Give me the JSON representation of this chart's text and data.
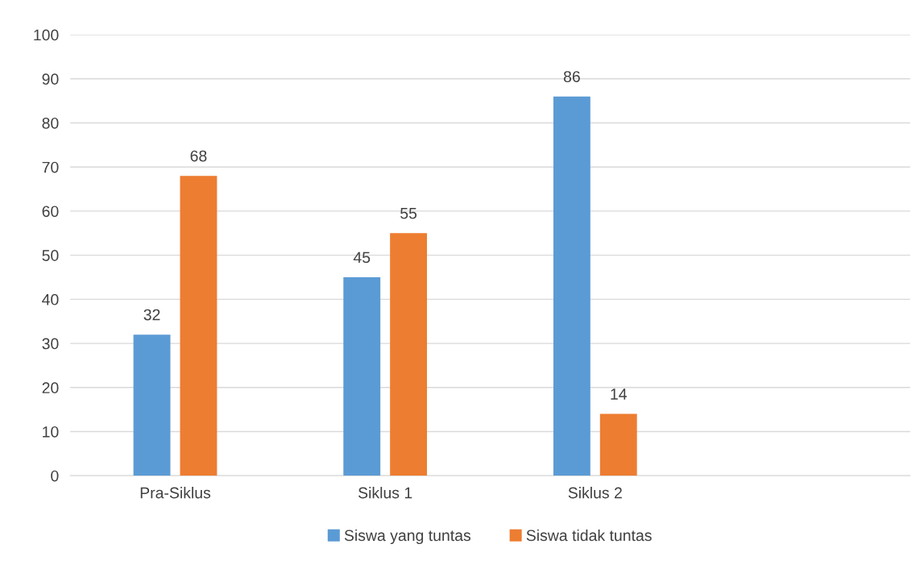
{
  "chart_data": {
    "type": "bar",
    "categories": [
      "Pra-Siklus",
      "Siklus 1",
      "Siklus 2",
      null
    ],
    "series": [
      {
        "name": "Siswa yang tuntas",
        "color": "#5b9bd5",
        "values": [
          32,
          45,
          86,
          null
        ]
      },
      {
        "name": "Siswa tidak tuntas",
        "color": "#ed7d31",
        "values": [
          68,
          55,
          14,
          null
        ]
      }
    ],
    "ylim": [
      0,
      100
    ],
    "yticks": [
      0,
      10,
      20,
      30,
      40,
      50,
      60,
      70,
      80,
      90,
      100
    ],
    "grid": "y",
    "legend": "bottom",
    "data_labels": true
  }
}
